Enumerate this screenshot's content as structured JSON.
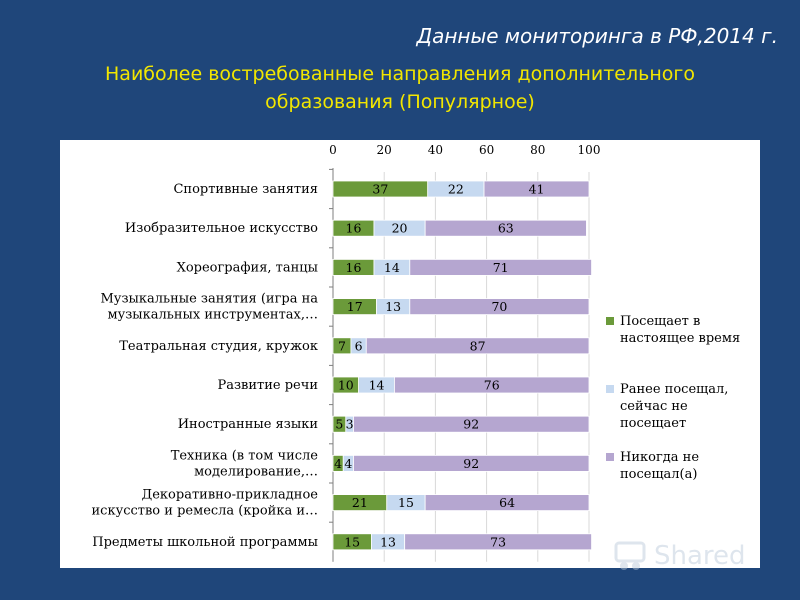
{
  "slide": {
    "title": "Данные мониторинга  в РФ,2014 г.",
    "subtitle": "Наиболее востребованные направления дополнительного образования (Популярное)"
  },
  "colors": {
    "background": "#1f467a",
    "title": "#ffffff",
    "subtitle": "#f2e600"
  },
  "watermark": {
    "text": "Shared",
    "icon": "slide-share-icon"
  },
  "chart_data": {
    "type": "bar",
    "orientation": "horizontal",
    "stacked": true,
    "title": "",
    "xlabel": "",
    "ylabel": "",
    "xlim": [
      0,
      100
    ],
    "x_ticks": [
      "0",
      "20",
      "40",
      "60",
      "80",
      "100"
    ],
    "x_axis_position": "top",
    "grid": true,
    "legend_position": "right",
    "categories": [
      [
        "Спортивные занятия"
      ],
      [
        "Изобразительное искусство"
      ],
      [
        "Хореография, танцы"
      ],
      [
        "Музыкальные занятия (игра на",
        "музыкальных инструментах,…"
      ],
      [
        "Театральная студия, кружок"
      ],
      [
        "Развитие речи"
      ],
      [
        "Иностранные языки"
      ],
      [
        "Техника (в том числе",
        "моделирование,…"
      ],
      [
        "Декоративно-прикладное",
        "искусство и ремесла (кройка и…"
      ],
      [
        "Предметы школьной программы"
      ]
    ],
    "series": [
      {
        "name": "Посещает в настоящее время",
        "legend_lines": [
          "Посещает в",
          "настоящее время"
        ],
        "color": "#6b9a3a",
        "values": [
          37,
          16,
          16,
          17,
          7,
          10,
          5,
          4,
          21,
          15
        ]
      },
      {
        "name": "Ранее посещал, сейчас не посещает",
        "legend_lines": [
          "Ранее посещал,",
          "сейчас не",
          "посещает"
        ],
        "color": "#c6d9f0",
        "values": [
          22,
          20,
          14,
          13,
          6,
          14,
          3,
          4,
          15,
          13
        ]
      },
      {
        "name": "Никогда не посещал(а)",
        "legend_lines": [
          "Никогда не",
          "посещал(а)"
        ],
        "color": "#b5a6d0",
        "values": [
          41,
          63,
          71,
          70,
          87,
          76,
          92,
          92,
          64,
          73
        ]
      }
    ]
  }
}
